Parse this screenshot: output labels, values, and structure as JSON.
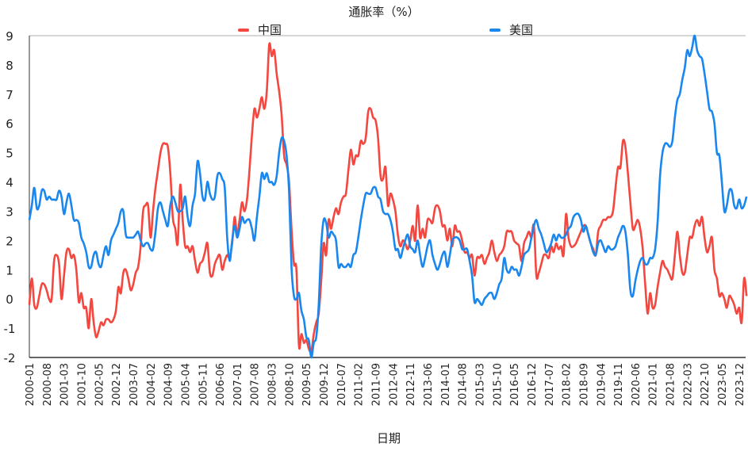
{
  "chart_data": {
    "type": "line",
    "title": "通胀率（%）",
    "xlabel": "日期",
    "ylabel": "",
    "ylim": [
      -2,
      9
    ],
    "yticks": [
      -2,
      -1,
      0,
      1,
      2,
      3,
      4,
      5,
      6,
      7,
      8,
      9
    ],
    "x_range": [
      "2000-01",
      "2024-03"
    ],
    "frequency": "monthly",
    "xticks": [
      "2000-01",
      "2000-08",
      "2001-03",
      "2001-10",
      "2002-05",
      "2002-12",
      "2003-07",
      "2004-02",
      "2004-09",
      "2005-04",
      "2005-11",
      "2006-06",
      "2007-01",
      "2007-08",
      "2008-03",
      "2008-10",
      "2009-05",
      "2009-12",
      "2010-07",
      "2011-02",
      "2011-09",
      "2012-04",
      "2012-11",
      "2013-06",
      "2014-01",
      "2014-08",
      "2015-03",
      "2015-10",
      "2016-05",
      "2016-12",
      "2017-07",
      "2018-02",
      "2018-09",
      "2019-04",
      "2019-11",
      "2020-06",
      "2021-01",
      "2021-08",
      "2022-03",
      "2022-10",
      "2023-05",
      "2023-12"
    ],
    "grid": false,
    "legend_position": "top",
    "series": [
      {
        "name": "中国",
        "color": "#f4473f",
        "values": [
          -0.2,
          0.7,
          -0.2,
          -0.3,
          0.1,
          0.5,
          0.5,
          0.3,
          0,
          0,
          1.3,
          1.5,
          1.2,
          0,
          0.8,
          1.6,
          1.7,
          1.4,
          1.5,
          1,
          -0.1,
          0.2,
          -0.3,
          -0.3,
          -1,
          0,
          -0.8,
          -1.3,
          -1.1,
          -0.8,
          -0.9,
          -0.7,
          -0.7,
          -0.8,
          -0.7,
          -0.4,
          0.4,
          0.2,
          0.9,
          1,
          0.7,
          0.3,
          0.5,
          0.9,
          1.1,
          1.8,
          3,
          3.2,
          3.2,
          2.1,
          3,
          3.8,
          4.4,
          5,
          5.3,
          5.3,
          5.2,
          4.3,
          2.8,
          2.4,
          1.9,
          3.9,
          2.7,
          1.8,
          1.8,
          1.6,
          1.8,
          1.3,
          0.9,
          1.2,
          1.3,
          1.6,
          1.9,
          0.9,
          0.8,
          1.2,
          1.4,
          1.5,
          1,
          1.3,
          1.5,
          1.4,
          1.9,
          2.8,
          2.2,
          2.7,
          3.3,
          3,
          3.4,
          4.4,
          5.6,
          6.5,
          6.2,
          6.5,
          6.9,
          6.5,
          7.1,
          8.7,
          8.3,
          8.5,
          7.7,
          7.1,
          6.3,
          4.9,
          4.6,
          4,
          2.4,
          1.2,
          1,
          -1.6,
          -1.2,
          -1.5,
          -1.4,
          -1.7,
          -1.8,
          -1.2,
          -0.8,
          -0.5,
          0.6,
          1.9,
          1.5,
          2.7,
          2.4,
          2.8,
          3.1,
          2.9,
          3.3,
          3.5,
          3.6,
          4.4,
          5.1,
          4.6,
          4.9,
          4.9,
          5.4,
          5.3,
          5.5,
          6.4,
          6.5,
          6.2,
          6.1,
          5.5,
          4.2,
          4.1,
          4.5,
          3.2,
          3.6,
          3.4,
          3,
          2.2,
          1.8,
          2,
          1.9,
          1.7,
          2,
          2.5,
          2,
          3.2,
          2.1,
          2.4,
          2.1,
          2.7,
          2.7,
          2.6,
          3.1,
          3.2,
          3,
          2.5,
          2.5,
          2,
          2.4,
          1.8,
          2.5,
          2.3,
          2.3,
          2,
          1.6,
          1.6,
          1.4,
          1.5,
          0.8,
          1.4,
          1.4,
          1.5,
          1.2,
          1.4,
          1.6,
          2,
          1.6,
          1.3,
          1.5,
          1.6,
          1.8,
          2.3,
          2.3,
          2.3,
          2,
          1.9,
          1.8,
          1.3,
          1.9,
          2.1,
          2.3,
          2.1,
          2.5,
          0.8,
          0.9,
          1.2,
          1.5,
          1.5,
          1.4,
          1.8,
          1.6,
          1.9,
          1.7,
          1.8,
          1.5,
          2.9,
          2.1,
          1.8,
          1.8,
          1.9,
          2.1,
          2.3,
          2.5,
          2.5,
          2.2,
          1.9,
          1.7,
          1.5,
          2.3,
          2.5,
          2.7,
          2.7,
          2.8,
          2.8,
          3,
          3.8,
          4.5,
          4.5,
          5.4,
          5.2,
          4.3,
          3.3,
          2.4,
          2.5,
          2.7,
          2.4,
          1.7,
          0.5,
          -0.5,
          0.2,
          -0.3,
          -0.2,
          0.4,
          0.9,
          1.3,
          1.1,
          1,
          0.8,
          0.7,
          1.5,
          2.3,
          1.5,
          0.9,
          0.9,
          1.5,
          2.1,
          2.1,
          2.5,
          2.7,
          2.5,
          2.8,
          2.1,
          1.6,
          1.8,
          2.1,
          1,
          0.7,
          0.1,
          0.2,
          0,
          -0.3,
          0.1,
          0,
          -0.2,
          -0.5,
          -0.3,
          -0.8,
          0.7,
          0.1
        ]
      },
      {
        "name": "美国",
        "color": "#1a87ee",
        "values": [
          2.7,
          3.2,
          3.8,
          3.1,
          3.2,
          3.7,
          3.7,
          3.4,
          3.5,
          3.4,
          3.4,
          3.4,
          3.7,
          3.5,
          2.9,
          3.3,
          3.6,
          3.2,
          2.7,
          2.7,
          2.6,
          2.1,
          1.9,
          1.6,
          1.1,
          1.1,
          1.5,
          1.6,
          1.2,
          1.1,
          1.5,
          1.8,
          1.5,
          2,
          2.2,
          2.4,
          2.6,
          3,
          3,
          2.2,
          2.1,
          2.1,
          2.1,
          2.2,
          2.3,
          2,
          1.8,
          1.9,
          1.9,
          1.7,
          1.7,
          2.3,
          3.1,
          3.3,
          3,
          2.7,
          2.5,
          3.2,
          3.5,
          3.3,
          3,
          3,
          3.1,
          3.5,
          2.8,
          2.5,
          3.2,
          3.6,
          4.7,
          4.3,
          3.5,
          3.4,
          4,
          3.6,
          3.4,
          3.5,
          4.2,
          4.3,
          4.1,
          3.8,
          2.1,
          1.3,
          2,
          2.5,
          2.1,
          2.4,
          2.8,
          2.6,
          2.7,
          2.7,
          2.4,
          2,
          2.8,
          3.5,
          4.3,
          4.1,
          4.3,
          4,
          4,
          3.9,
          4.2,
          5,
          5.5,
          5.4,
          4.9,
          3.7,
          1.1,
          0.1,
          0,
          0.2,
          -0.4,
          -0.7,
          -1.3,
          -1.4,
          -2,
          -1.5,
          -1.3,
          -0.2,
          1.8,
          2.7,
          2.6,
          2.1,
          2.3,
          2.2,
          2,
          1.1,
          1.2,
          1.1,
          1.1,
          1.2,
          1.1,
          1.5,
          1.6,
          2.1,
          2.7,
          3.2,
          3.6,
          3.6,
          3.6,
          3.8,
          3.8,
          3.5,
          3.4,
          3,
          2.9,
          2.9,
          2.7,
          2.3,
          1.7,
          1.7,
          1.4,
          1.7,
          2,
          2.2,
          1.8,
          1.7,
          1.6,
          2,
          1.5,
          1.1,
          1.4,
          1.8,
          2,
          1.5,
          1.2,
          1,
          1.2,
          1.5,
          1.6,
          1.1,
          1.5,
          2,
          2.1,
          2.1,
          2,
          1.7,
          1.7,
          1.7,
          1.3,
          0.8,
          -0.1,
          0,
          -0.1,
          -0.2,
          0,
          0.1,
          0.2,
          0.2,
          0,
          0.2,
          0.5,
          0.7,
          1.4,
          1,
          0.9,
          1.1,
          1,
          1,
          0.8,
          1.1,
          1.5,
          1.6,
          1.7,
          2.1,
          2.5,
          2.7,
          2.4,
          2.2,
          1.9,
          1.6,
          1.7,
          1.9,
          2.2,
          2,
          2.2,
          2.1,
          2.1,
          2.2,
          2.4,
          2.5,
          2.8,
          2.9,
          2.9,
          2.7,
          2.3,
          2.5,
          2.2,
          1.9,
          1.6,
          1.5,
          1.9,
          2,
          1.8,
          1.6,
          1.8,
          1.7,
          1.7,
          1.8,
          2.1,
          2.3,
          2.5,
          2.3,
          1.5,
          0.3,
          0.1,
          0.6,
          1,
          1.3,
          1.4,
          1.2,
          1.2,
          1.4,
          1.4,
          1.7,
          2.6,
          4.2,
          5,
          5.3,
          5.3,
          5.2,
          5.4,
          6.2,
          6.8,
          7,
          7.5,
          7.9,
          8.5,
          8.3,
          8.6,
          9,
          8.5,
          8.3,
          8.2,
          7.7,
          7.1,
          6.5,
          6.4,
          6,
          5,
          4.9,
          4,
          3,
          3.2,
          3.7,
          3.7,
          3.2,
          3.1,
          3.4,
          3.1,
          3.2,
          3.5
        ]
      }
    ]
  }
}
